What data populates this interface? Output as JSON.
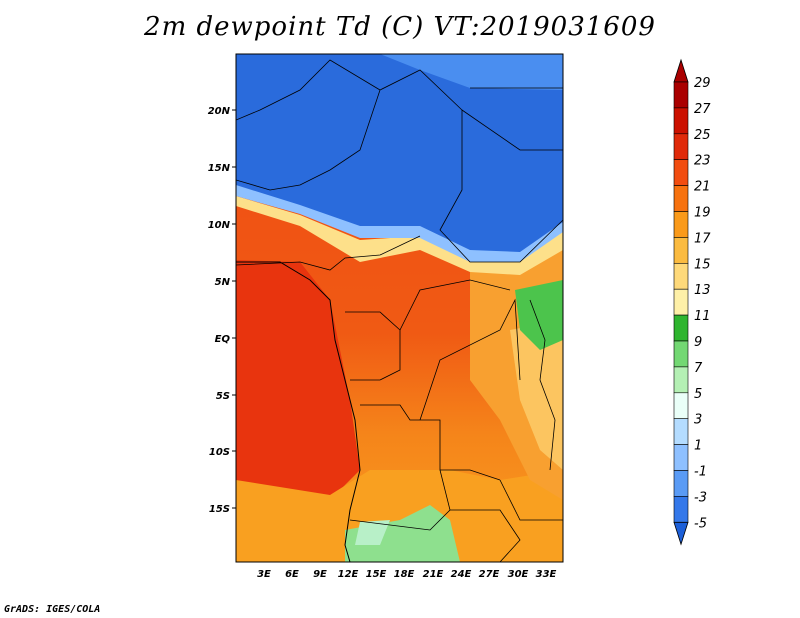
{
  "title": "2m dewpoint Td (C) VT:2019031609",
  "credit": "GrADS: IGES/COLA",
  "lat_labels": [
    "20N",
    "15N",
    "10N",
    "5N",
    "EQ",
    "5S",
    "10S",
    "15S"
  ],
  "lon_labels": [
    "3E",
    "6E",
    "9E",
    "12E",
    "15E",
    "18E",
    "21E",
    "24E",
    "27E",
    "30E",
    "33E"
  ],
  "colorbar": {
    "labels": [
      "29",
      "27",
      "25",
      "23",
      "21",
      "19",
      "17",
      "15",
      "13",
      "11",
      "9",
      "7",
      "5",
      "3",
      "1",
      "-1",
      "-3",
      "-5"
    ],
    "colors": [
      "#aa0000",
      "#cc1100",
      "#e02a0a",
      "#f24d10",
      "#f7720f",
      "#fa9a1a",
      "#fbbb40",
      "#fed97a",
      "#fef0a8",
      "#2fb52f",
      "#73d873",
      "#b4f0b4",
      "#eafff8",
      "#b4dcff",
      "#8ec0ff",
      "#5a9bf5",
      "#3478ea",
      "#1c5fd8"
    ]
  }
}
